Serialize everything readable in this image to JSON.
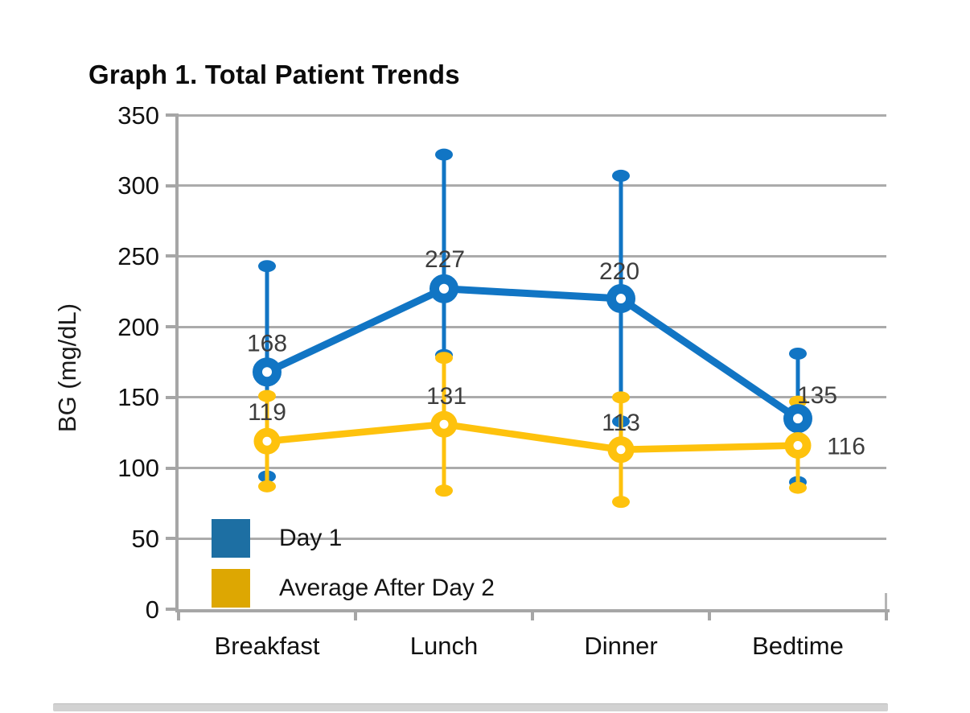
{
  "chart_data": {
    "type": "line",
    "title": "Graph 1. Total Patient Trends",
    "ylabel": "BG (mg/dL)",
    "xlabel": "",
    "categories": [
      "Breakfast",
      "Lunch",
      "Dinner",
      "Bedtime"
    ],
    "ylim": [
      0,
      350
    ],
    "yticks": [
      0,
      50,
      100,
      150,
      200,
      250,
      300,
      350
    ],
    "grid": "horizontal",
    "legend_position": "inside-bottom-left",
    "series": [
      {
        "name": "Day 1",
        "color": "#1175c4",
        "legend_color": "#1d6fa3",
        "values": [
          168,
          227,
          220,
          135
        ],
        "error_high": [
          243,
          322,
          307,
          181
        ],
        "error_low": [
          94,
          180,
          133,
          90
        ]
      },
      {
        "name": "Average After Day 2",
        "color": "#fec20d",
        "legend_color": "#dda702",
        "values": [
          119,
          131,
          113,
          116
        ],
        "error_high": [
          151,
          178,
          150,
          147
        ],
        "error_low": [
          87,
          84,
          76,
          86
        ]
      }
    ],
    "data_labels": {
      "show": true,
      "color": "#3d3d3d",
      "values": [
        [
          168,
          227,
          220,
          135
        ],
        [
          119,
          131,
          113,
          116
        ]
      ]
    },
    "axis_color": "#a6a6a6",
    "gridline_color": "#ababab"
  }
}
